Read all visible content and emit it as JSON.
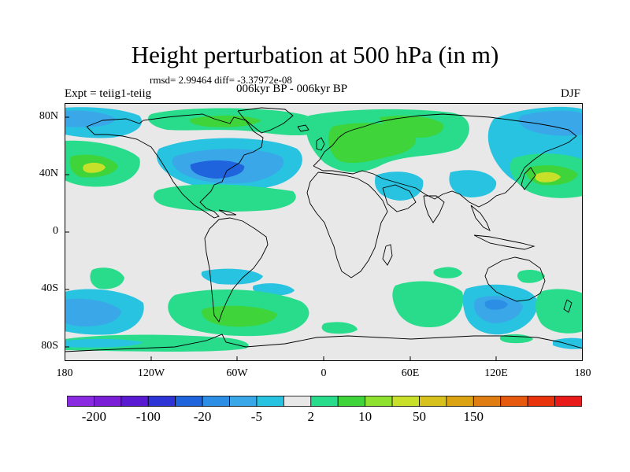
{
  "header": {
    "title": "Height perturbation at 500 hPa (in m)",
    "stats": "rmsd= 2.99464 diff= -3.37972e-08",
    "experiment": "Expt = teiig1-teiig",
    "period": "006kyr BP - 006kyr BP",
    "season": "DJF"
  },
  "axes": {
    "y_ticks": [
      "80N",
      "40N",
      "0",
      "40S",
      "80S"
    ],
    "x_ticks": [
      "180",
      "120W",
      "60W",
      "0",
      "60E",
      "120E",
      "180"
    ]
  },
  "colorbar": {
    "colors": [
      "#8a2be2",
      "#7b1fd6",
      "#5a1ad1",
      "#2d35d6",
      "#1f64dd",
      "#2c8ee4",
      "#3aa7e8",
      "#28c3e0",
      "#e8e8e8",
      "#28dc8c",
      "#3ed43a",
      "#8ee22f",
      "#c9e02b",
      "#d7c21d",
      "#dba312",
      "#e07d12",
      "#e65a10",
      "#e8330c",
      "#e81a1a"
    ],
    "labels": [
      "-200",
      "-100",
      "-20",
      "-5",
      "2",
      "10",
      "50",
      "150"
    ]
  },
  "map_colors": {
    "background": "#e8e8e8",
    "light_green": "#28dc8c",
    "green": "#3ed43a",
    "yellow_green": "#c9e02b",
    "light_blue": "#28c3e0",
    "blue": "#3aa7e8",
    "mid_blue": "#1f64dd"
  }
}
